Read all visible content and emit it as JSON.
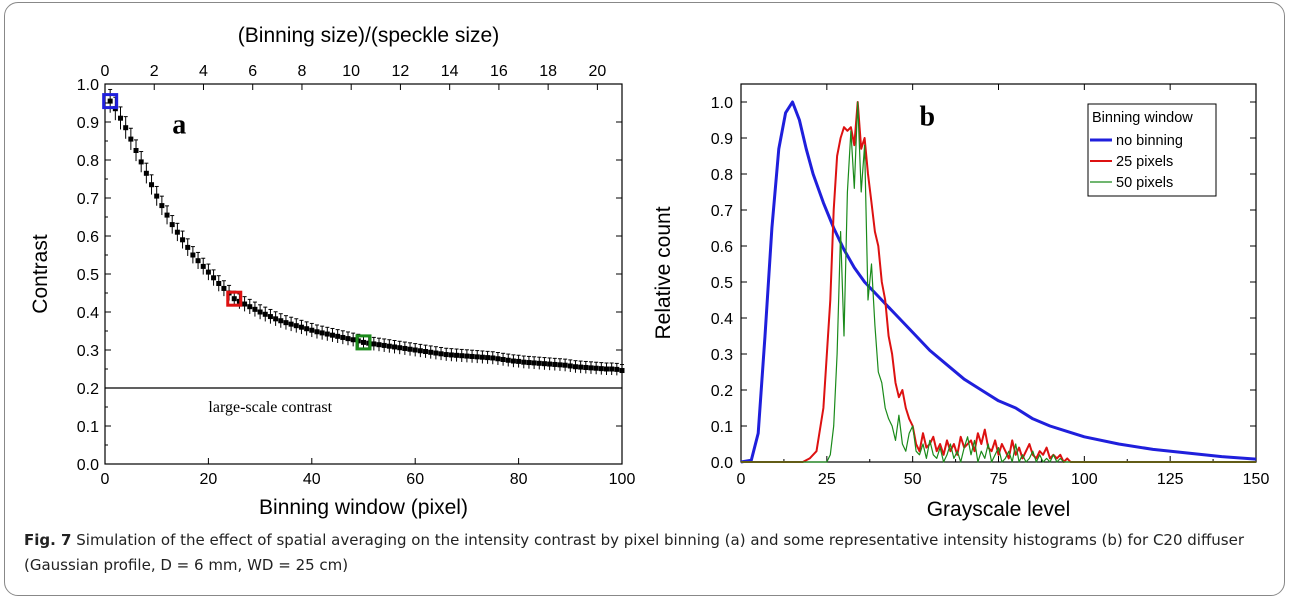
{
  "caption": {
    "label": "Fig. 7",
    "text": "Simulation of the effect of spatial averaging on the intensity contrast by pixel binning (a) and some representative intensity histograms (b) for C20 diffuser (Gaussian profile, D = 6 mm, WD = 25 cm)"
  },
  "colors": {
    "blue": "#1f1fdc",
    "red": "#dd1111",
    "green": "#1a8a1a",
    "black": "#000000"
  },
  "chart_data": [
    {
      "type": "scatter",
      "panel_label": "a",
      "xlabel": "Binning window (pixel)",
      "ylabel": "Contrast",
      "top_xlabel": "(Binning size)/(speckle size)",
      "xlim": [
        0,
        100
      ],
      "ylim": [
        0,
        1.0
      ],
      "top_xlim": [
        0,
        21
      ],
      "xticks": [
        "0",
        "20",
        "40",
        "60",
        "80",
        "100"
      ],
      "yticks": [
        "0.0",
        "0.1",
        "0.2",
        "0.3",
        "0.4",
        "0.5",
        "0.6",
        "0.7",
        "0.8",
        "0.9",
        "1.0"
      ],
      "top_xticks": [
        "0",
        "2",
        "4",
        "6",
        "8",
        "10",
        "12",
        "14",
        "16",
        "18",
        "20"
      ],
      "reference_line": {
        "y": 0.2,
        "label": "large-scale contrast"
      },
      "highlighted_points": [
        {
          "x": 1,
          "y": 0.955,
          "color": "blue"
        },
        {
          "x": 25,
          "y": 0.435,
          "color": "red"
        },
        {
          "x": 50,
          "y": 0.32,
          "color": "green"
        }
      ],
      "x": [
        1,
        2,
        3,
        4,
        5,
        6,
        7,
        8,
        9,
        10,
        11,
        12,
        13,
        14,
        15,
        16,
        17,
        18,
        19,
        20,
        21,
        22,
        23,
        24,
        25,
        26,
        27,
        28,
        29,
        30,
        31,
        32,
        33,
        34,
        35,
        36,
        37,
        38,
        39,
        40,
        41,
        42,
        43,
        44,
        45,
        46,
        47,
        48,
        49,
        50,
        51,
        52,
        53,
        54,
        55,
        56,
        57,
        58,
        59,
        60,
        61,
        62,
        63,
        64,
        65,
        66,
        67,
        68,
        69,
        70,
        71,
        72,
        73,
        74,
        75,
        76,
        77,
        78,
        79,
        80,
        81,
        82,
        83,
        84,
        85,
        86,
        87,
        88,
        89,
        90,
        91,
        92,
        93,
        94,
        95,
        96,
        97,
        98,
        99,
        100
      ],
      "y": [
        0.955,
        0.935,
        0.91,
        0.885,
        0.855,
        0.825,
        0.795,
        0.765,
        0.735,
        0.705,
        0.68,
        0.655,
        0.63,
        0.61,
        0.59,
        0.57,
        0.55,
        0.535,
        0.52,
        0.505,
        0.49,
        0.475,
        0.462,
        0.45,
        0.435,
        0.428,
        0.421,
        0.414,
        0.407,
        0.4,
        0.394,
        0.388,
        0.382,
        0.377,
        0.372,
        0.368,
        0.364,
        0.36,
        0.356,
        0.352,
        0.348,
        0.345,
        0.342,
        0.339,
        0.336,
        0.333,
        0.33,
        0.327,
        0.324,
        0.32,
        0.318,
        0.316,
        0.314,
        0.312,
        0.31,
        0.308,
        0.306,
        0.304,
        0.302,
        0.3,
        0.298,
        0.296,
        0.294,
        0.292,
        0.29,
        0.288,
        0.287,
        0.286,
        0.285,
        0.284,
        0.283,
        0.282,
        0.281,
        0.28,
        0.279,
        0.277,
        0.275,
        0.273,
        0.271,
        0.27,
        0.268,
        0.267,
        0.266,
        0.265,
        0.264,
        0.263,
        0.262,
        0.261,
        0.26,
        0.258,
        0.256,
        0.255,
        0.254,
        0.253,
        0.252,
        0.251,
        0.25,
        0.25,
        0.249,
        0.246
      ]
    },
    {
      "type": "line",
      "panel_label": "b",
      "xlabel": "Grayscale level",
      "ylabel": "Relative count",
      "xlim": [
        0,
        150
      ],
      "ylim": [
        0,
        1.05
      ],
      "xticks": [
        "0",
        "25",
        "50",
        "75",
        "100",
        "125",
        "150"
      ],
      "yticks": [
        "0.0",
        "0.1",
        "0.2",
        "0.3",
        "0.4",
        "0.5",
        "0.6",
        "0.7",
        "0.8",
        "0.9",
        "1.0"
      ],
      "legend": {
        "title": "Binning window",
        "position": "top-right"
      },
      "series": [
        {
          "name": "no binning",
          "color": "blue",
          "x": [
            0,
            3,
            5,
            7,
            9,
            11,
            13,
            15,
            17,
            19,
            21,
            24,
            27,
            30,
            33,
            36,
            40,
            45,
            50,
            55,
            60,
            65,
            70,
            75,
            80,
            85,
            90,
            95,
            100,
            110,
            120,
            130,
            140,
            150
          ],
          "y": [
            0,
            0.005,
            0.08,
            0.35,
            0.65,
            0.87,
            0.97,
            1.0,
            0.95,
            0.87,
            0.8,
            0.72,
            0.65,
            0.59,
            0.54,
            0.5,
            0.46,
            0.41,
            0.36,
            0.31,
            0.27,
            0.23,
            0.2,
            0.17,
            0.15,
            0.12,
            0.1,
            0.085,
            0.07,
            0.05,
            0.035,
            0.025,
            0.015,
            0.008
          ]
        },
        {
          "name": "25 pixels",
          "color": "red",
          "x": [
            0,
            18,
            20,
            22,
            24,
            26,
            27,
            28,
            29,
            30,
            31,
            32,
            33,
            34,
            35,
            36,
            37,
            38,
            39,
            40,
            41,
            42,
            43,
            44,
            45,
            46,
            47,
            48,
            49,
            50,
            51,
            52,
            53,
            54,
            55,
            56,
            57,
            58,
            59,
            60,
            61,
            62,
            63,
            64,
            65,
            66,
            67,
            68,
            69,
            70,
            71,
            72,
            73,
            74,
            75,
            76,
            77,
            78,
            79,
            80,
            81,
            82,
            83,
            84,
            85,
            86,
            87,
            88,
            89,
            90,
            91,
            92,
            93,
            94,
            95,
            96,
            100,
            150
          ],
          "y": [
            0,
            0,
            0.01,
            0.03,
            0.15,
            0.45,
            0.7,
            0.85,
            0.9,
            0.93,
            0.92,
            0.93,
            0.88,
            1.0,
            0.87,
            0.9,
            0.8,
            0.72,
            0.64,
            0.6,
            0.5,
            0.45,
            0.35,
            0.3,
            0.22,
            0.18,
            0.2,
            0.15,
            0.12,
            0.1,
            0.05,
            0.03,
            0.08,
            0.04,
            0.05,
            0.07,
            0.03,
            0.05,
            0.02,
            0.06,
            0.03,
            0.05,
            0.02,
            0.07,
            0.04,
            0.05,
            0.06,
            0.03,
            0.08,
            0.05,
            0.09,
            0.04,
            0.03,
            0.06,
            0.02,
            0.05,
            0.03,
            0.01,
            0.06,
            0.02,
            0.04,
            0.01,
            0.03,
            0.05,
            0.02,
            0.01,
            0.03,
            0.02,
            0.04,
            0.01,
            0.02,
            0.01,
            0.02,
            0.0,
            0.01,
            0.0,
            0.0,
            0.0
          ]
        },
        {
          "name": "50 pixels",
          "color": "green",
          "x": [
            0,
            25,
            26,
            27,
            28,
            29,
            30,
            31,
            32,
            33,
            34,
            35,
            36,
            37,
            38,
            39,
            40,
            41,
            42,
            43,
            44,
            45,
            46,
            47,
            48,
            49,
            50,
            51,
            52,
            53,
            54,
            55,
            56,
            57,
            58,
            59,
            60,
            61,
            62,
            63,
            64,
            65,
            66,
            67,
            68,
            69,
            70,
            71,
            72,
            73,
            74,
            75,
            76,
            77,
            78,
            79,
            80,
            81,
            82,
            83,
            84,
            85,
            86,
            87,
            88,
            89,
            90,
            91,
            92,
            93,
            94,
            95,
            150
          ],
          "y": [
            0,
            0,
            0.02,
            0.1,
            0.3,
            0.64,
            0.35,
            0.75,
            0.92,
            0.76,
            1.0,
            0.75,
            0.88,
            0.45,
            0.55,
            0.38,
            0.25,
            0.22,
            0.15,
            0.12,
            0.1,
            0.06,
            0.13,
            0.05,
            0.03,
            0.08,
            0.1,
            0.03,
            0.02,
            0.05,
            0.01,
            0.06,
            0.02,
            0.01,
            0.04,
            0.0,
            0.02,
            0.05,
            0.01,
            0.03,
            0.0,
            0.04,
            0.07,
            0.02,
            0.06,
            0.0,
            0.03,
            0.01,
            0.05,
            0.0,
            0.02,
            0.04,
            0.0,
            0.01,
            0.03,
            0.0,
            0.05,
            0.0,
            0.02,
            0.0,
            0.01,
            0.03,
            0.0,
            0.02,
            0.0,
            0.01,
            0.0,
            0.02,
            0.0,
            0.01,
            0.0,
            0.0,
            0.0
          ]
        }
      ]
    }
  ]
}
